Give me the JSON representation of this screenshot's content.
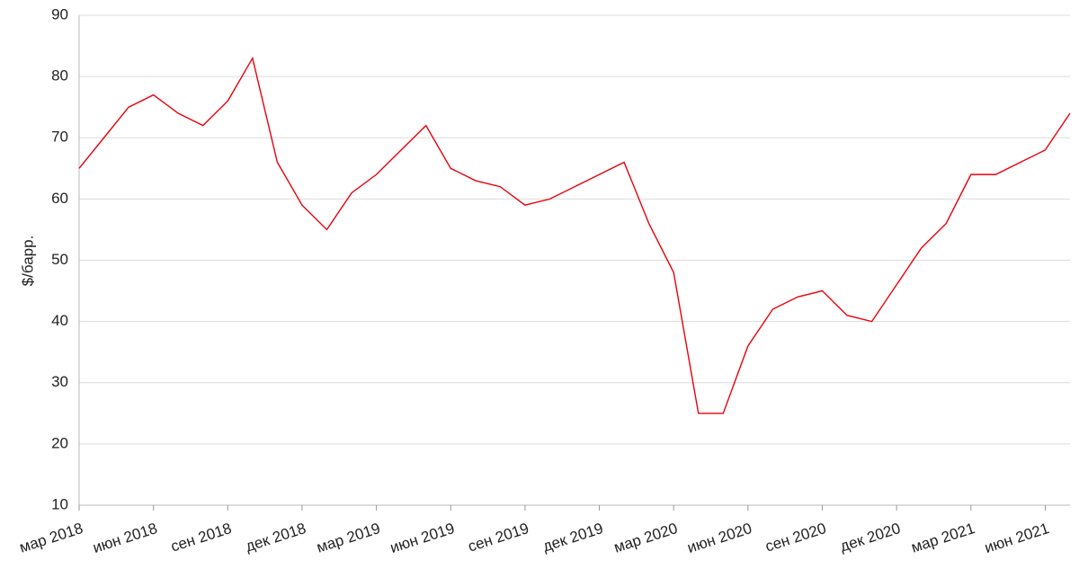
{
  "chart_data": {
    "type": "line",
    "y_label": "$/барр.",
    "x": [
      "2018-03",
      "2018-04",
      "2018-05",
      "2018-06",
      "2018-07",
      "2018-08",
      "2018-09",
      "2018-10",
      "2018-11",
      "2018-12",
      "2019-01",
      "2019-02",
      "2019-03",
      "2019-04",
      "2019-05",
      "2019-06",
      "2019-07",
      "2019-08",
      "2019-09",
      "2019-10",
      "2019-11",
      "2019-12",
      "2020-01",
      "2020-02",
      "2020-03",
      "2020-04",
      "2020-05",
      "2020-06",
      "2020-07",
      "2020-08",
      "2020-09",
      "2020-10",
      "2020-11",
      "2020-12",
      "2021-01",
      "2021-02",
      "2021-03",
      "2021-04",
      "2021-05",
      "2021-06",
      "2021-07"
    ],
    "series": [
      {
        "color": "#e8000b",
        "values": [
          65,
          70,
          75,
          77,
          74,
          72,
          76,
          83,
          66,
          59,
          55,
          61,
          64,
          68,
          72,
          65,
          63,
          62,
          59,
          60,
          62,
          64,
          66,
          56,
          48,
          25,
          25,
          36,
          42,
          44,
          45,
          41,
          40,
          46,
          52,
          56,
          64,
          64,
          66,
          68,
          74
        ]
      }
    ],
    "xlim": [
      "2018-03",
      "2021-07"
    ],
    "xticks": [
      {
        "value": "2018-03",
        "label": "мар 2018"
      },
      {
        "value": "2018-06",
        "label": "июн 2018"
      },
      {
        "value": "2018-09",
        "label": "сен 2018"
      },
      {
        "value": "2018-12",
        "label": "дек 2018"
      },
      {
        "value": "2019-03",
        "label": "мар 2019"
      },
      {
        "value": "2019-06",
        "label": "июн 2019"
      },
      {
        "value": "2019-09",
        "label": "сен 2019"
      },
      {
        "value": "2019-12",
        "label": "дек 2019"
      },
      {
        "value": "2020-03",
        "label": "мар 2020"
      },
      {
        "value": "2020-06",
        "label": "июн 2020"
      },
      {
        "value": "2020-09",
        "label": "сен 2020"
      },
      {
        "value": "2020-12",
        "label": "дек 2020"
      },
      {
        "value": "2021-03",
        "label": "мар 2021"
      },
      {
        "value": "2021-06",
        "label": "июн 2021"
      }
    ],
    "ylim": [
      10,
      90
    ],
    "yticks": [
      10,
      20,
      30,
      40,
      50,
      60,
      70,
      80,
      90
    ],
    "grid": true
  }
}
